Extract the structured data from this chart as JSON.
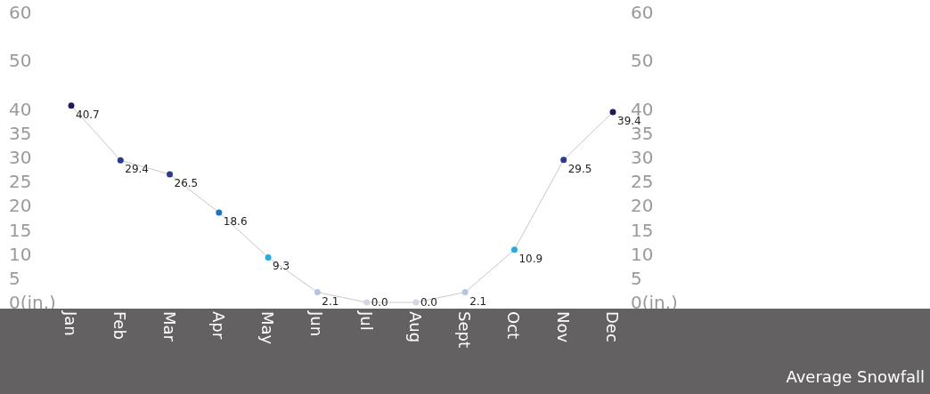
{
  "chart_data": {
    "type": "line",
    "title": "Average Snowfall",
    "categories": [
      "Jan",
      "Feb",
      "Mar",
      "Apr",
      "May",
      "Jun",
      "Jul",
      "Aug",
      "Sept",
      "Oct",
      "Nov",
      "Dec"
    ],
    "series": [
      {
        "color": "#c8c8c8",
        "values": [
          40.7,
          29.4,
          26.5,
          18.6,
          9.3,
          2.1,
          0,
          0,
          2.1,
          10.9,
          29.5,
          39.4
        ],
        "colors": [
          "#1f1a5c",
          "#2b3990",
          "#2b3990",
          "#1c75bc",
          "#27aae1",
          "#b3c6e0",
          "#d6d6e6",
          "#d6d6e6",
          "#b3c6e0",
          "#27aae1",
          "#2b3990",
          "#1f1a5c"
        ],
        "value_labels": [
          "40.7",
          "29.4",
          "26.5",
          "18.6",
          "9.3",
          "2.1",
          "0.0",
          "0.0",
          "2.1",
          "10.9",
          "29.5",
          "39.4"
        ]
      }
    ],
    "ylim": [
      0,
      60
    ],
    "yticks": [
      {
        "value": 0,
        "label": "0(in.)"
      },
      5,
      10,
      15,
      20,
      25,
      30,
      35,
      40,
      50,
      60
    ],
    "y2lim": [
      0,
      60
    ],
    "y2ticks": [
      {
        "value": 0,
        "label": "0(in.)"
      },
      5,
      10,
      15,
      20,
      25,
      30,
      35,
      40,
      50,
      60
    ],
    "marker": "circle",
    "grid": false
  }
}
